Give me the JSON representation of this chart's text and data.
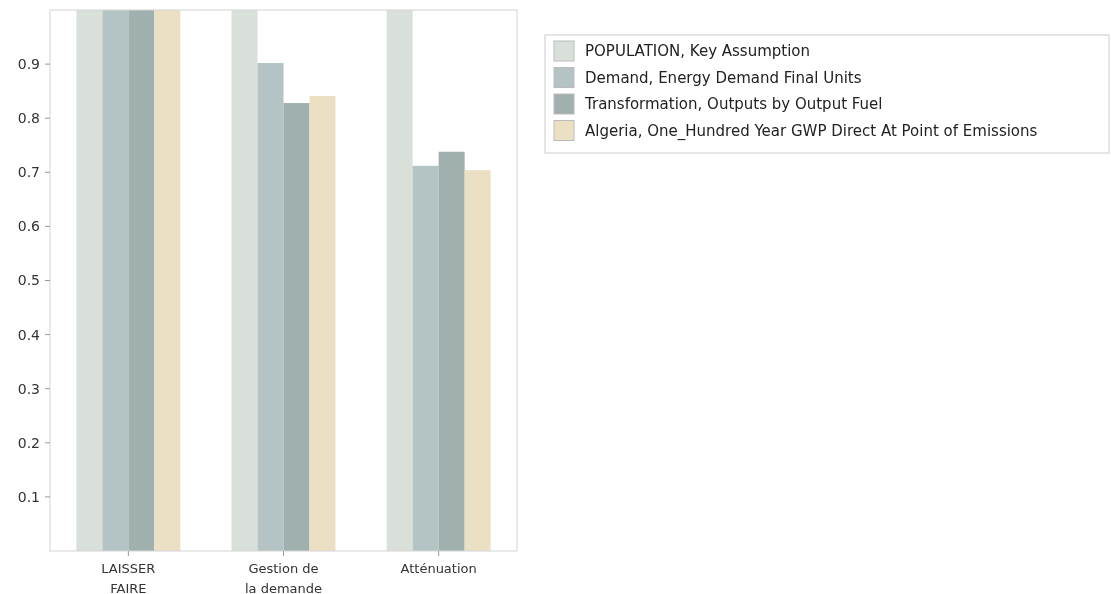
{
  "chart_data": {
    "type": "bar",
    "categories": [
      "LAISSER FAIRE",
      "Gestion de la demande",
      "Atténuation"
    ],
    "series": [
      {
        "name": "POPULATION, Key Assumption",
        "color": "#d9e0d9",
        "values": [
          1,
          1,
          1
        ]
      },
      {
        "name": "Demand, Energy Demand Final Units",
        "color": "#b4c4c4",
        "values": [
          1,
          0.902,
          0.712
        ]
      },
      {
        "name": "Transformation, Outputs by Output Fuel",
        "color": "#9fb0ae",
        "values": [
          1,
          0.828,
          0.738
        ]
      },
      {
        "name": "Algeria, One_Hundred Year GWP Direct At Point of Emissions",
        "color": "#ebe0c4",
        "values": [
          1,
          0.841,
          0.704
        ]
      }
    ],
    "ylim": [
      0,
      1
    ],
    "yticks": [
      0.1,
      0.2,
      0.3,
      0.4,
      0.5,
      0.6,
      0.7,
      0.8,
      0.9
    ],
    "grid": false,
    "legend": "top right"
  }
}
